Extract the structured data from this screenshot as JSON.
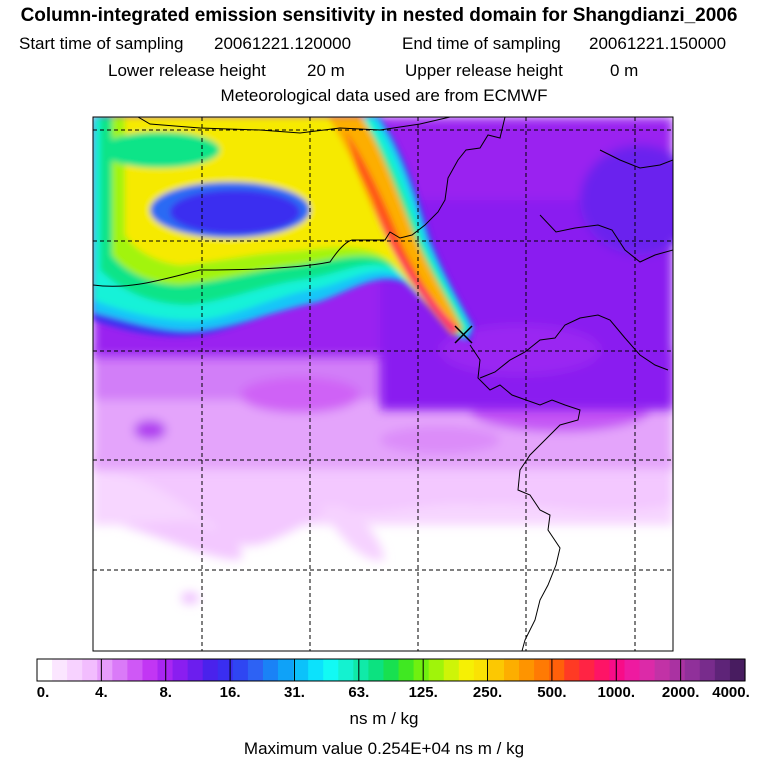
{
  "header": {
    "title": "Column-integrated emission sensitivity in nested domain for Shangdianzi_2006",
    "start_label": "Start time of sampling",
    "start_value": "20061221.120000",
    "end_label": "End time of sampling",
    "end_value": "20061221.150000",
    "lower_label": "Lower release height",
    "lower_value": "20 m",
    "upper_label": "Upper release height",
    "upper_value": "0 m",
    "met_text": "Meteorological data used are from ECMWF"
  },
  "colorbar": {
    "tick_labels": [
      "0.",
      "4.",
      "8.",
      "16.",
      "31.",
      "63.",
      "125.",
      "250.",
      "500.",
      "1000.",
      "2000.",
      "4000."
    ],
    "colors": [
      "#ffffff",
      "#fbe6ff",
      "#f7d2ff",
      "#f2bdfe",
      "#e69cfb",
      "#da7af8",
      "#cf58f6",
      "#c236f4",
      "#a826f2",
      "#8a1ef0",
      "#6c1eee",
      "#4a22ec",
      "#3a2ef0",
      "#2f46f2",
      "#2d62f4",
      "#1a82f6",
      "#0fa2f8",
      "#0cc2fa",
      "#0ce2fc",
      "#12faf4",
      "#14f2d0",
      "#10eaa8",
      "#0ce280",
      "#18e050",
      "#40e822",
      "#70f010",
      "#a0f40a",
      "#cef408",
      "#f6f004",
      "#fae204",
      "#fcc802",
      "#fdae00",
      "#fe9400",
      "#ff7a04",
      "#ff600a",
      "#ff3a24",
      "#ff2444",
      "#fe1466",
      "#f80c88",
      "#ee1aa0",
      "#dc2aa8",
      "#c232a6",
      "#aa32a2",
      "#90309a",
      "#782c8c",
      "#5e2478",
      "#481c60"
    ],
    "unit": "ns m / kg"
  },
  "footer": {
    "max_text": "Maximum value  0.254E+04 ns m / kg"
  },
  "map": {
    "release_marker": "station-x-icon"
  }
}
